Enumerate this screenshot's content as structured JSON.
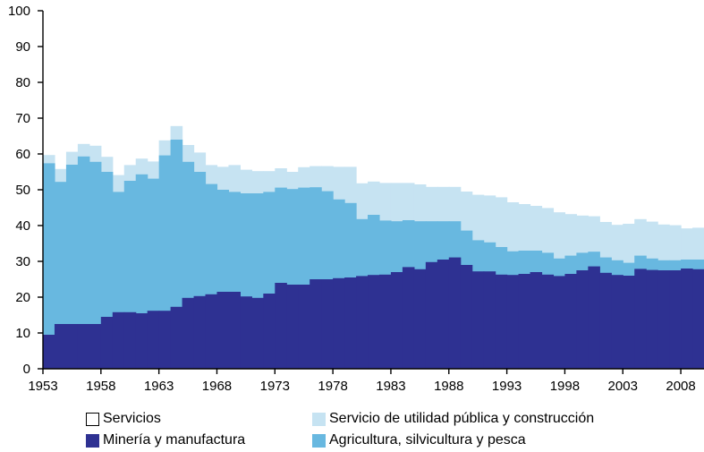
{
  "chart_data": {
    "type": "area",
    "stacked": true,
    "step": true,
    "title": "",
    "xlabel": "",
    "ylabel": "",
    "ylim": [
      0,
      100
    ],
    "yticks": [
      0,
      10,
      20,
      30,
      40,
      50,
      60,
      70,
      80,
      90,
      100
    ],
    "xlim": [
      1953,
      2010
    ],
    "xticks": [
      1953,
      1958,
      1963,
      1968,
      1973,
      1978,
      1983,
      1988,
      1993,
      1998,
      2003,
      2008
    ],
    "grid": false,
    "legend_position": "bottom",
    "years": [
      1953,
      1954,
      1955,
      1956,
      1957,
      1958,
      1959,
      1960,
      1961,
      1962,
      1963,
      1964,
      1965,
      1966,
      1967,
      1968,
      1969,
      1970,
      1971,
      1972,
      1973,
      1974,
      1975,
      1976,
      1977,
      1978,
      1979,
      1980,
      1981,
      1982,
      1983,
      1984,
      1985,
      1986,
      1987,
      1988,
      1989,
      1990,
      1991,
      1992,
      1993,
      1994,
      1995,
      1996,
      1997,
      1998,
      1999,
      2000,
      2001,
      2002,
      2003,
      2004,
      2005,
      2006,
      2007,
      2008,
      2009
    ],
    "series": [
      {
        "name": "Minería y manufactura",
        "color": "#2e3192",
        "values": [
          9.5,
          12.5,
          12.5,
          12.5,
          12.5,
          14.5,
          15.8,
          15.8,
          15.5,
          16.2,
          16.2,
          17.3,
          19.8,
          20.3,
          20.8,
          21.5,
          21.5,
          20.2,
          19.8,
          21.0,
          24.0,
          23.5,
          23.5,
          25.0,
          25.0,
          25.3,
          25.5,
          25.9,
          26.2,
          26.3,
          27.0,
          28.4,
          27.8,
          29.8,
          30.5,
          31.1,
          29.0,
          27.2,
          27.2,
          26.3,
          26.2,
          26.5,
          27.0,
          26.3,
          25.9,
          26.5,
          27.5,
          28.6,
          26.8,
          26.2,
          26.0,
          27.9,
          27.6,
          27.5,
          27.5,
          28.0,
          27.8
        ]
      },
      {
        "name": "Agricultura, silvicultura y pesca",
        "color": "#68b8e0",
        "values": [
          57.4,
          52.2,
          57.0,
          59.3,
          57.8,
          55.0,
          49.4,
          52.5,
          54.3,
          53.1,
          59.6,
          64.0,
          57.8,
          55.0,
          51.6,
          50.0,
          49.4,
          49.0,
          49.0,
          49.4,
          50.6,
          50.2,
          50.6,
          50.7,
          49.6,
          47.3,
          46.3,
          41.8,
          43.0,
          41.4,
          41.2,
          41.5,
          41.2,
          41.2,
          41.2,
          41.2,
          38.6,
          35.9,
          35.3,
          34.0,
          32.8,
          33.0,
          33.0,
          32.4,
          30.8,
          31.6,
          32.4,
          32.7,
          31.1,
          30.3,
          29.6,
          31.6,
          30.8,
          30.3,
          30.3,
          30.5,
          30.5
        ]
      },
      {
        "name": "Servicio de utilidad pública y construcción",
        "color": "#c6e3f2",
        "values": [
          59.7,
          55.8,
          60.6,
          62.8,
          62.3,
          59.2,
          54.1,
          56.9,
          58.7,
          57.9,
          63.8,
          67.8,
          62.5,
          60.4,
          56.9,
          56.4,
          56.9,
          55.6,
          55.2,
          55.2,
          56.0,
          55.0,
          56.3,
          56.6,
          56.6,
          56.4,
          56.4,
          51.8,
          52.3,
          51.9,
          51.9,
          51.9,
          51.5,
          50.8,
          50.8,
          50.8,
          49.5,
          48.6,
          48.4,
          47.9,
          46.5,
          46.0,
          45.5,
          44.9,
          43.7,
          43.2,
          42.8,
          42.6,
          41.0,
          40.2,
          40.5,
          41.8,
          41.1,
          40.3,
          40.1,
          39.2,
          39.4
        ]
      },
      {
        "name": "Servicios",
        "color": "#ffffff",
        "values": [
          100,
          100,
          100,
          100,
          100,
          100,
          100,
          100,
          100,
          100,
          100,
          100,
          100,
          100,
          100,
          100,
          100,
          100,
          100,
          100,
          100,
          100,
          100,
          100,
          100,
          100,
          100,
          100,
          100,
          100,
          100,
          100,
          100,
          100,
          100,
          100,
          100,
          100,
          100,
          100,
          100,
          100,
          100,
          100,
          100,
          100,
          100,
          100,
          100,
          100,
          100,
          100,
          100,
          100,
          100,
          100,
          100
        ]
      }
    ]
  },
  "legend": {
    "servicios": "Servicios",
    "utilidad": "Servicio de utilidad pública y construcción",
    "mineria": "Minería y manufactura",
    "agricultura": "Agricultura, silvicultura y pesca"
  }
}
